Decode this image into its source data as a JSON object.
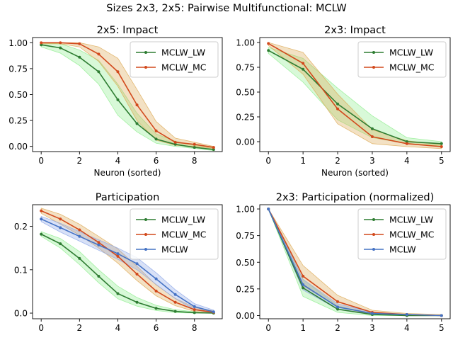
{
  "suptitle": "Sizes 2x3, 2x5: Pairwise Multifunctional: MCLW",
  "colors": {
    "MCLW_LW": "#2e7d32",
    "MCLW_MC": "#d2491c",
    "MCLW": "#4472c4",
    "band_LW": "#90ee90",
    "band_MC": "#ddaa55",
    "band_MCLW": "#8fa8e8"
  },
  "chart_data": [
    {
      "type": "line",
      "title": "2x5: Impact",
      "xlabel": "Neuron (sorted)",
      "ylabel": "",
      "xlim": [
        -0.45,
        9.45
      ],
      "ylim": [
        -0.05,
        1.05
      ],
      "xticks": [
        0,
        2,
        4,
        6,
        8
      ],
      "yticks": [
        0.0,
        0.25,
        0.5,
        0.75,
        1.0
      ],
      "ytick_labels": [
        "0.00",
        "0.25",
        "0.50",
        "0.75",
        "1.00"
      ],
      "legend_loc": "upper right",
      "x": [
        0,
        1,
        2,
        3,
        4,
        5,
        6,
        7,
        8,
        9
      ],
      "series": [
        {
          "name": "MCLW_LW",
          "color_key": "MCLW_LW",
          "band_key": "band_LW",
          "values": [
            0.98,
            0.95,
            0.86,
            0.72,
            0.45,
            0.22,
            0.07,
            0.02,
            -0.01,
            -0.03
          ],
          "lower": [
            0.96,
            0.9,
            0.78,
            0.6,
            0.3,
            0.14,
            0.03,
            0.0,
            -0.02,
            -0.04
          ],
          "upper": [
            1.0,
            0.99,
            0.93,
            0.83,
            0.6,
            0.32,
            0.12,
            0.05,
            0.01,
            -0.01
          ]
        },
        {
          "name": "MCLW_MC",
          "color_key": "MCLW_MC",
          "band_key": "band_MC",
          "values": [
            1.0,
            1.0,
            0.99,
            0.89,
            0.72,
            0.4,
            0.15,
            0.04,
            0.02,
            -0.01
          ],
          "lower": [
            0.99,
            0.99,
            0.96,
            0.82,
            0.58,
            0.25,
            0.06,
            0.01,
            0.0,
            -0.02
          ],
          "upper": [
            1.0,
            1.0,
            1.0,
            0.96,
            0.85,
            0.55,
            0.24,
            0.08,
            0.04,
            0.0
          ]
        }
      ]
    },
    {
      "type": "line",
      "title": "2x3: Impact",
      "xlabel": "Neuron (sorted)",
      "ylabel": "",
      "xlim": [
        -0.25,
        5.25
      ],
      "ylim": [
        -0.1,
        1.05
      ],
      "xticks": [
        0,
        1,
        2,
        3,
        4,
        5
      ],
      "yticks": [
        0.0,
        0.25,
        0.5,
        0.75,
        1.0
      ],
      "ytick_labels": [
        "0.00",
        "0.25",
        "0.50",
        "0.75",
        "1.00"
      ],
      "legend_loc": "upper right",
      "x": [
        0,
        1,
        2,
        3,
        4,
        5
      ],
      "series": [
        {
          "name": "MCLW_LW",
          "color_key": "MCLW_LW",
          "band_key": "band_LW",
          "values": [
            0.92,
            0.73,
            0.38,
            0.13,
            0.0,
            -0.02
          ],
          "lower": [
            0.89,
            0.6,
            0.22,
            0.04,
            -0.02,
            -0.04
          ],
          "upper": [
            0.95,
            0.84,
            0.54,
            0.26,
            0.04,
            0.0
          ]
        },
        {
          "name": "MCLW_MC",
          "color_key": "MCLW_MC",
          "band_key": "band_MC",
          "values": [
            0.99,
            0.79,
            0.33,
            0.05,
            -0.02,
            -0.05
          ],
          "lower": [
            0.97,
            0.68,
            0.18,
            -0.02,
            -0.05,
            -0.07
          ],
          "upper": [
            1.0,
            0.9,
            0.48,
            0.12,
            0.01,
            -0.03
          ]
        }
      ]
    },
    {
      "type": "line",
      "title": "Participation",
      "xlabel": "",
      "ylabel": "",
      "xlim": [
        -0.45,
        9.45
      ],
      "ylim": [
        -0.013,
        0.25
      ],
      "xticks": [
        0,
        2,
        4,
        6,
        8
      ],
      "yticks": [
        0.0,
        0.1,
        0.2
      ],
      "ytick_labels": [
        "0.0",
        "0.1",
        "0.2"
      ],
      "legend_loc": "upper right",
      "x": [
        0,
        1,
        2,
        3,
        4,
        5,
        6,
        7,
        8,
        9
      ],
      "series": [
        {
          "name": "MCLW_LW",
          "color_key": "MCLW_LW",
          "band_key": "band_LW",
          "values": [
            0.182,
            0.16,
            0.126,
            0.085,
            0.045,
            0.025,
            0.011,
            0.004,
            0.001,
            0.0
          ],
          "lower": [
            0.177,
            0.15,
            0.112,
            0.07,
            0.033,
            0.016,
            0.006,
            0.001,
            0.0,
            0.0
          ],
          "upper": [
            0.188,
            0.172,
            0.142,
            0.1,
            0.062,
            0.036,
            0.018,
            0.008,
            0.003,
            0.001
          ]
        },
        {
          "name": "MCLW_MC",
          "color_key": "MCLW_MC",
          "band_key": "band_MC",
          "values": [
            0.236,
            0.217,
            0.192,
            0.163,
            0.131,
            0.09,
            0.051,
            0.025,
            0.008,
            0.002
          ],
          "lower": [
            0.23,
            0.205,
            0.18,
            0.15,
            0.115,
            0.075,
            0.04,
            0.017,
            0.004,
            0.0
          ],
          "upper": [
            0.242,
            0.228,
            0.205,
            0.177,
            0.148,
            0.108,
            0.065,
            0.034,
            0.013,
            0.005
          ]
        },
        {
          "name": "MCLW",
          "color_key": "MCLW",
          "band_key": "band_MCLW",
          "values": [
            0.217,
            0.197,
            0.177,
            0.157,
            0.137,
            0.114,
            0.079,
            0.043,
            0.015,
            0.003
          ],
          "lower": [
            0.211,
            0.187,
            0.166,
            0.145,
            0.124,
            0.1,
            0.066,
            0.033,
            0.008,
            0.0
          ],
          "upper": [
            0.223,
            0.207,
            0.188,
            0.169,
            0.15,
            0.128,
            0.093,
            0.054,
            0.022,
            0.007
          ]
        }
      ]
    },
    {
      "type": "line",
      "title": "2x3: Participation (normalized)",
      "xlabel": "",
      "ylabel": "",
      "xlim": [
        -0.25,
        5.25
      ],
      "ylim": [
        -0.03,
        1.04
      ],
      "xticks": [
        0,
        1,
        2,
        3,
        4,
        5
      ],
      "yticks": [
        0.0,
        0.25,
        0.5,
        0.75,
        1.0
      ],
      "ytick_labels": [
        "0.00",
        "0.25",
        "0.50",
        "0.75",
        "1.00"
      ],
      "legend_loc": "upper right",
      "x": [
        0,
        1,
        2,
        3,
        4,
        5
      ],
      "series": [
        {
          "name": "MCLW_LW",
          "color_key": "MCLW_LW",
          "band_key": "band_LW",
          "values": [
            1.0,
            0.26,
            0.06,
            0.01,
            0.0,
            0.0
          ],
          "lower": [
            1.0,
            0.18,
            0.03,
            0.0,
            0.0,
            0.0
          ],
          "upper": [
            1.0,
            0.34,
            0.09,
            0.02,
            0.01,
            0.0
          ]
        },
        {
          "name": "MCLW_MC",
          "color_key": "MCLW_MC",
          "band_key": "band_MC",
          "values": [
            1.0,
            0.37,
            0.13,
            0.03,
            0.01,
            0.0
          ],
          "lower": [
            1.0,
            0.28,
            0.08,
            0.01,
            0.0,
            0.0
          ],
          "upper": [
            1.0,
            0.47,
            0.19,
            0.05,
            0.02,
            0.01
          ]
        },
        {
          "name": "MCLW",
          "color_key": "MCLW",
          "band_key": "band_MCLW",
          "values": [
            1.0,
            0.29,
            0.08,
            0.02,
            0.01,
            0.0
          ],
          "lower": [
            1.0,
            0.24,
            0.06,
            0.01,
            0.0,
            0.0
          ],
          "upper": [
            1.0,
            0.34,
            0.11,
            0.03,
            0.01,
            0.0
          ]
        }
      ]
    }
  ]
}
